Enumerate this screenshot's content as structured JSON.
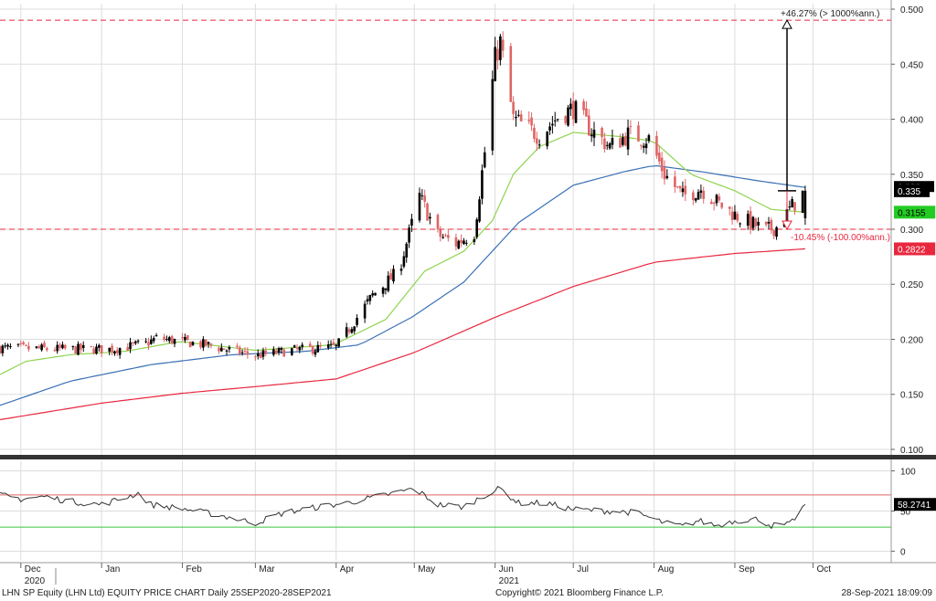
{
  "chart_data": {
    "type": "candlestick",
    "x_start": "2020-11-23",
    "x_end": "2021-10-31",
    "ylim": [
      0.095,
      0.505
    ],
    "yticks": [
      "0.100",
      "0.150",
      "0.200",
      "0.250",
      "0.300",
      "0.350",
      "0.400",
      "0.450",
      "0.500"
    ],
    "ytick_values": [
      0.1,
      0.15,
      0.2,
      0.25,
      0.3,
      0.35,
      0.4,
      0.45,
      0.5
    ],
    "month_ticks": [
      {
        "label": "Dec",
        "date": "2020-12-01"
      },
      {
        "label": "Jan",
        "date": "2021-01-01"
      },
      {
        "label": "Feb",
        "date": "2021-02-01"
      },
      {
        "label": "Mar",
        "date": "2021-03-01"
      },
      {
        "label": "Apr",
        "date": "2021-04-01"
      },
      {
        "label": "May",
        "date": "2021-05-01"
      },
      {
        "label": "Jun",
        "date": "2021-06-01"
      },
      {
        "label": "Jul",
        "date": "2021-07-01"
      },
      {
        "label": "Aug",
        "date": "2021-08-01"
      },
      {
        "label": "Sep",
        "date": "2021-09-01"
      },
      {
        "label": "Oct",
        "date": "2021-10-01"
      }
    ],
    "year_ticks": [
      {
        "label": "2020",
        "date": "2020-12-01"
      },
      {
        "label": "2021",
        "date": "2021-06-01"
      }
    ],
    "close_anchors": [
      [
        "2020-11-23",
        0.192
      ],
      [
        "2020-12-15",
        0.191
      ],
      [
        "2021-01-05",
        0.191
      ],
      [
        "2021-01-18",
        0.196
      ],
      [
        "2021-01-22",
        0.201
      ],
      [
        "2021-02-10",
        0.195
      ],
      [
        "2021-03-01",
        0.185
      ],
      [
        "2021-03-15",
        0.19
      ],
      [
        "2021-04-01",
        0.193
      ],
      [
        "2021-04-15",
        0.24
      ],
      [
        "2021-04-25",
        0.262
      ],
      [
        "2021-05-03",
        0.33
      ],
      [
        "2021-05-10",
        0.295
      ],
      [
        "2021-05-17",
        0.287
      ],
      [
        "2021-05-24",
        0.297
      ],
      [
        "2021-05-28",
        0.37
      ],
      [
        "2021-06-01",
        0.455
      ],
      [
        "2021-06-03",
        0.47
      ],
      [
        "2021-06-08",
        0.4
      ],
      [
        "2021-06-18",
        0.385
      ],
      [
        "2021-06-25",
        0.402
      ],
      [
        "2021-07-01",
        0.41
      ],
      [
        "2021-07-08",
        0.39
      ],
      [
        "2021-07-15",
        0.375
      ],
      [
        "2021-07-22",
        0.386
      ],
      [
        "2021-07-30",
        0.382
      ],
      [
        "2021-08-05",
        0.35
      ],
      [
        "2021-08-12",
        0.33
      ],
      [
        "2021-08-19",
        0.337
      ],
      [
        "2021-08-26",
        0.323
      ],
      [
        "2021-09-03",
        0.31
      ],
      [
        "2021-09-13",
        0.299
      ],
      [
        "2021-09-17",
        0.302
      ],
      [
        "2021-09-20",
        0.31
      ],
      [
        "2021-09-22",
        0.318
      ],
      [
        "2021-09-28",
        0.335
      ]
    ],
    "sma20_anchors": [
      [
        "2020-11-23",
        0.168
      ],
      [
        "2020-12-03",
        0.18
      ],
      [
        "2020-12-20",
        0.186
      ],
      [
        "2021-01-10",
        0.189
      ],
      [
        "2021-01-31",
        0.198
      ],
      [
        "2021-03-01",
        0.19
      ],
      [
        "2021-03-31",
        0.195
      ],
      [
        "2021-04-20",
        0.218
      ],
      [
        "2021-05-05",
        0.262
      ],
      [
        "2021-05-20",
        0.28
      ],
      [
        "2021-05-31",
        0.308
      ],
      [
        "2021-06-08",
        0.35
      ],
      [
        "2021-06-18",
        0.375
      ],
      [
        "2021-07-01",
        0.388
      ],
      [
        "2021-07-20",
        0.384
      ],
      [
        "2021-08-01",
        0.38
      ],
      [
        "2021-08-15",
        0.35
      ],
      [
        "2021-09-01",
        0.335
      ],
      [
        "2021-09-15",
        0.318
      ],
      [
        "2021-09-28",
        0.3155
      ]
    ],
    "sma50_anchors": [
      [
        "2020-11-23",
        0.14
      ],
      [
        "2020-12-20",
        0.162
      ],
      [
        "2021-01-20",
        0.177
      ],
      [
        "2021-02-20",
        0.186
      ],
      [
        "2021-03-20",
        0.189
      ],
      [
        "2021-04-10",
        0.195
      ],
      [
        "2021-04-30",
        0.22
      ],
      [
        "2021-05-20",
        0.252
      ],
      [
        "2021-06-10",
        0.306
      ],
      [
        "2021-07-01",
        0.34
      ],
      [
        "2021-07-20",
        0.352
      ],
      [
        "2021-08-01",
        0.358
      ],
      [
        "2021-08-20",
        0.352
      ],
      [
        "2021-09-10",
        0.344
      ],
      [
        "2021-09-28",
        0.338
      ]
    ],
    "sma200_anchors": [
      [
        "2020-11-23",
        0.127
      ],
      [
        "2021-01-01",
        0.142
      ],
      [
        "2021-02-01",
        0.151
      ],
      [
        "2021-03-01",
        0.157
      ],
      [
        "2021-04-01",
        0.164
      ],
      [
        "2021-05-01",
        0.188
      ],
      [
        "2021-06-01",
        0.22
      ],
      [
        "2021-07-01",
        0.248
      ],
      [
        "2021-08-01",
        0.27
      ],
      [
        "2021-09-01",
        0.278
      ],
      [
        "2021-09-28",
        0.2822
      ]
    ],
    "rsi_ylim": [
      -12,
      112
    ],
    "rsi_ticks": [
      0,
      50,
      100
    ],
    "rsi_levels": [
      70,
      30
    ],
    "rsi_value_label": "58.2741",
    "rsi_anchors": [
      [
        "2020-11-23",
        70
      ],
      [
        "2020-12-01",
        65
      ],
      [
        "2020-12-10",
        68
      ],
      [
        "2020-12-20",
        62
      ],
      [
        "2021-01-01",
        58
      ],
      [
        "2021-01-15",
        72
      ],
      [
        "2021-01-20",
        58
      ],
      [
        "2021-02-01",
        53
      ],
      [
        "2021-02-15",
        45
      ],
      [
        "2021-03-01",
        35
      ],
      [
        "2021-03-12",
        48
      ],
      [
        "2021-03-25",
        55
      ],
      [
        "2021-04-05",
        60
      ],
      [
        "2021-04-20",
        70
      ],
      [
        "2021-05-01",
        78
      ],
      [
        "2021-05-10",
        58
      ],
      [
        "2021-05-20",
        55
      ],
      [
        "2021-05-28",
        70
      ],
      [
        "2021-06-03",
        78
      ],
      [
        "2021-06-10",
        60
      ],
      [
        "2021-06-20",
        60
      ],
      [
        "2021-07-01",
        52
      ],
      [
        "2021-07-15",
        50
      ],
      [
        "2021-07-25",
        48
      ],
      [
        "2021-08-05",
        35
      ],
      [
        "2021-08-12",
        31
      ],
      [
        "2021-08-18",
        38
      ],
      [
        "2021-08-25",
        32
      ],
      [
        "2021-09-01",
        38
      ],
      [
        "2021-09-10",
        40
      ],
      [
        "2021-09-15",
        32
      ],
      [
        "2021-09-22",
        33
      ],
      [
        "2021-09-28",
        58
      ]
    ],
    "price_labels": [
      {
        "text": "0.335",
        "value": 0.335,
        "bg": "#000000",
        "fg": "#ffffff"
      },
      {
        "text": "0.3155",
        "value": 0.3155,
        "bg": "#22cc22",
        "fg": "#000000"
      },
      {
        "text": "0.2822",
        "value": 0.2822,
        "bg": "#e8273e",
        "fg": "#ffffff"
      }
    ],
    "hidden_label": "0.338",
    "ref_lines": [
      0.49,
      0.3
    ],
    "annotation_up": {
      "text": "+46.27% (> 1000%ann.)",
      "value": 0.49
    },
    "annotation_down": {
      "text": "-10.45% (-100.00%ann.)",
      "value": 0.3
    },
    "last_close": 0.335
  },
  "colors": {
    "up": "#000000",
    "down": "#e06565",
    "sma20": "#8fd44f",
    "sma50": "#3a70b5",
    "sma200": "#e8273e",
    "rsi": "#333333",
    "rsi_high": "#e06565",
    "rsi_low": "#3cc43c",
    "refline": "#e8273e",
    "grid": "#dddddd"
  },
  "footer": {
    "left": "LHN SP Equity (LHN Ltd) EQUITY PRICE CHART  Daily 25SEP2020-28SEP2021",
    "center": "Copyright© 2021 Bloomberg Finance L.P.",
    "right": "28-Sep-2021 18:09:09"
  }
}
